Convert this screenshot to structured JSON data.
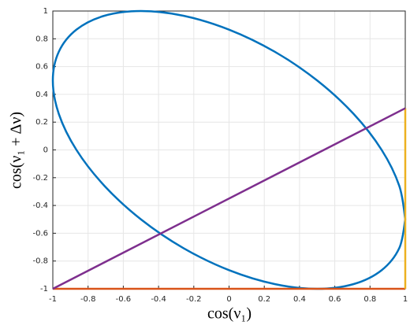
{
  "chart_data": {
    "type": "line",
    "xlabel": "cos(ν₁)",
    "ylabel": "cos(ν₁ + Δν)",
    "xlim": [
      -1,
      1
    ],
    "ylim": [
      -1,
      1
    ],
    "xticks": [
      -1,
      -0.8,
      -0.6,
      -0.4,
      -0.2,
      0,
      0.2,
      0.4,
      0.6,
      0.8,
      1
    ],
    "yticks": [
      -1,
      -0.8,
      -0.6,
      -0.4,
      -0.2,
      0,
      0.2,
      0.4,
      0.6,
      0.8,
      1
    ],
    "grid": true,
    "smooth": true,
    "series": [
      {
        "color": "#0072bd",
        "x": [
          1,
          0.966,
          0.866,
          0.707,
          0.5,
          0.259,
          0,
          -0.259,
          -0.5,
          -0.707,
          -0.866,
          -0.966,
          -1,
          -0.966,
          -0.866,
          -0.707,
          -0.5,
          -0.259,
          0,
          0.259,
          0.5,
          0.707,
          0.866,
          0.966,
          1
        ],
        "y": [
          -0.5,
          -0.707,
          -0.866,
          -0.966,
          -1,
          -0.966,
          -0.866,
          -0.707,
          -0.5,
          -0.259,
          0,
          0.259,
          0.5,
          0.707,
          0.866,
          0.966,
          1,
          0.966,
          0.866,
          0.707,
          0.5,
          0.259,
          0,
          -0.259,
          -0.5
        ]
      },
      {
        "color": "#d95319",
        "x": [
          -1,
          1
        ],
        "y": [
          -1,
          -1
        ]
      },
      {
        "color": "#edb120",
        "x": [
          1,
          1
        ],
        "y": [
          -1,
          0.3
        ]
      },
      {
        "color": "#7e2f8e",
        "x": [
          -1,
          1
        ],
        "y": [
          -1,
          0.3
        ]
      }
    ]
  }
}
